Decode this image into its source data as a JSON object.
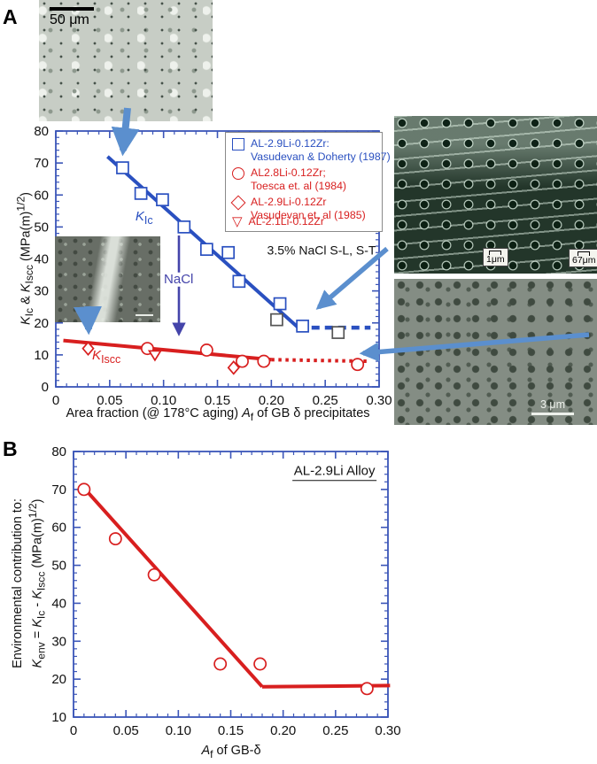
{
  "panels": {
    "a_label": "A",
    "b_label": "B"
  },
  "colors": {
    "axis": "#3b55b8",
    "kic_blue": "#2a50c0",
    "data_red": "#d81f1f",
    "nacl_purple": "#4444aa",
    "arrow_blue": "#5b8fce",
    "dark_marker": "#555555"
  },
  "micrographs": {
    "top_left_scale": "50 μm",
    "mid_right_scale_1": "1μm",
    "mid_right_scale_2": "67μm",
    "bottom_right_scale": "3 μm"
  },
  "chart_data": [
    {
      "id": "panel-a",
      "type": "scatter",
      "xlabel": "Area fraction (@ 178°C aging) *A*_{f} of GB δ precipitates",
      "ylabel_lines": [
        "*K*_{Ic} & *K*_{Iscc} (MPa(m)^{1/2})"
      ],
      "xlim": [
        0,
        0.3
      ],
      "ylim": [
        0,
        80
      ],
      "x_major_ticks": [
        0,
        0.05,
        0.1,
        0.15,
        0.2,
        0.25,
        0.3
      ],
      "x_tick_labels": [
        "0",
        "0.05",
        "0.10",
        "0.15",
        "0.20",
        "0.25",
        "0.30"
      ],
      "y_major_ticks": [
        0,
        10,
        20,
        30,
        40,
        50,
        60,
        70,
        80
      ],
      "y_tick_labels": [
        "0",
        "10",
        "20",
        "30",
        "40",
        "50",
        "60",
        "70",
        "80"
      ],
      "x_minor_step": 0.01,
      "y_minor_step": 2,
      "series": [
        {
          "name": "AL-2.9Li-0.12Zr: Vasudevan & Doherty (1987)",
          "marker": "square",
          "color": "#2a50c0",
          "points": [
            [
              0.062,
              68.5
            ],
            [
              0.079,
              60.5
            ],
            [
              0.099,
              58.5
            ],
            [
              0.119,
              50
            ],
            [
              0.14,
              43
            ],
            [
              0.16,
              42
            ],
            [
              0.17,
              33
            ],
            [
              0.208,
              26
            ],
            [
              0.205,
              21
            ],
            [
              0.229,
              19
            ],
            [
              0.262,
              17
            ]
          ],
          "point_colors": {
            "8": "#555555",
            "10": "#555555"
          }
        },
        {
          "name": "AL2.8Li-0.12Zr; Toesca et. al (1984)",
          "marker": "circle",
          "color": "#d81f1f",
          "points": [
            [
              0.085,
              12
            ],
            [
              0.14,
              11.5
            ],
            [
              0.173,
              8
            ],
            [
              0.193,
              8
            ],
            [
              0.28,
              7
            ]
          ]
        },
        {
          "name": "AL-2.9Li-0.12Zr Vasudevan et. al (1985)",
          "marker": "diamond",
          "color": "#d81f1f",
          "points": [
            [
              0.03,
              12
            ],
            [
              0.165,
              6
            ]
          ]
        },
        {
          "name": "AL-2.1Li-0.12Zr",
          "marker": "triangle-down",
          "color": "#d81f1f",
          "points": [
            [
              0.092,
              10
            ]
          ]
        }
      ],
      "lines": [
        {
          "name": "kic-trend",
          "color": "#2a50c0",
          "dash": "solid",
          "width": 4,
          "points": [
            [
              0.048,
              72
            ],
            [
              0.225,
              18.5
            ]
          ]
        },
        {
          "name": "kic-plateau",
          "color": "#2a50c0",
          "dash": "dashed",
          "width": 4.5,
          "points": [
            [
              0.225,
              18.5
            ],
            [
              0.292,
              18.5
            ]
          ]
        },
        {
          "name": "kiscc-trend",
          "color": "#d81f1f",
          "dash": "solid",
          "width": 4,
          "points": [
            [
              0.007,
              14.5
            ],
            [
              0.2,
              8.5
            ]
          ]
        },
        {
          "name": "kiscc-plateau",
          "color": "#d81f1f",
          "dash": "dotted",
          "width": 4,
          "points": [
            [
              0.2,
              8.5
            ],
            [
              0.292,
              8
            ]
          ]
        }
      ],
      "annotations": [
        {
          "name": "kic-label",
          "text": "*K*_{Ic}",
          "x": 0.082,
          "y": 52.5,
          "color": "#2a50c0",
          "size": 15
        },
        {
          "name": "kiscc-label",
          "text": "*K*_{Iscc}",
          "x": 0.047,
          "y": 9,
          "color": "#d81f1f",
          "size": 15
        },
        {
          "name": "nacl-label",
          "text": "NaCl",
          "x": 0.114,
          "y": 33.5,
          "color": "#4444aa",
          "size": 15,
          "bg": "#ffffff"
        },
        {
          "name": "environment-label",
          "text": "3.5% NaCl S-L, S-T",
          "x": 0.2466,
          "y": 42.7,
          "color": "#111111",
          "size": 14
        }
      ],
      "legend": [
        {
          "symbol": "square",
          "color": "#2a50c0",
          "line1": "AL-2.9Li-0.12Zr:",
          "line2": "Vasudevan & Doherty (1987)"
        },
        {
          "symbol": "circle",
          "color": "#d81f1f",
          "line1": "AL2.8Li-0.12Zr;",
          "line2": "Toesca et. al (1984)"
        },
        {
          "symbol": "diamond",
          "color": "#d81f1f",
          "line1": "AL-2.9Li-0.12Zr",
          "line2": "Vasudevan et. al (1985)"
        },
        {
          "symbol": "triangle-down",
          "color": "#d81f1f",
          "line1": "AL-2.1Li-0.12Zr",
          "line2": ""
        }
      ]
    },
    {
      "id": "panel-b",
      "type": "scatter",
      "xlabel": "*A*_{f} of GB-δ",
      "ylabel_lines": [
        "Environmental contribution to:",
        "*K*_{env} = *K*_{Ic} - *K*_{Iscc} (MPa(m)^{1/2})"
      ],
      "xlim": [
        0,
        0.3
      ],
      "ylim": [
        10,
        80
      ],
      "x_major_ticks": [
        0,
        0.05,
        0.1,
        0.15,
        0.2,
        0.25,
        0.3
      ],
      "x_tick_labels": [
        "0",
        "0.05",
        "0.10",
        "0.15",
        "0.20",
        "0.25",
        "0.30"
      ],
      "y_major_ticks": [
        10,
        20,
        30,
        40,
        50,
        60,
        70,
        80
      ],
      "y_tick_labels": [
        "10",
        "20",
        "30",
        "40",
        "50",
        "60",
        "70",
        "80"
      ],
      "x_minor_step": 0.01,
      "y_minor_step": 2,
      "series": [
        {
          "name": "AL-2.9Li Alloy K_env",
          "marker": "circle",
          "color": "#d81f1f",
          "points": [
            [
              0.01,
              70
            ],
            [
              0.04,
              57
            ],
            [
              0.077,
              47.5
            ],
            [
              0.14,
              24
            ],
            [
              0.178,
              24
            ],
            [
              0.28,
              17.5
            ]
          ]
        }
      ],
      "lines": [
        {
          "name": "kenv-trend",
          "color": "#d81f1f",
          "dash": "solid",
          "width": 4,
          "points": [
            [
              0.008,
              71
            ],
            [
              0.18,
              18
            ]
          ]
        },
        {
          "name": "kenv-plateau",
          "color": "#d81f1f",
          "dash": "solid",
          "width": 4,
          "points": [
            [
              0.18,
              18
            ],
            [
              0.302,
              18.3
            ]
          ]
        }
      ],
      "annotations": [
        {
          "name": "alloy-label",
          "text": "AL-2.9Li Alloy",
          "x": 0.249,
          "y": 74.5,
          "color": "#111111",
          "size": 15,
          "underline": true
        }
      ]
    }
  ]
}
